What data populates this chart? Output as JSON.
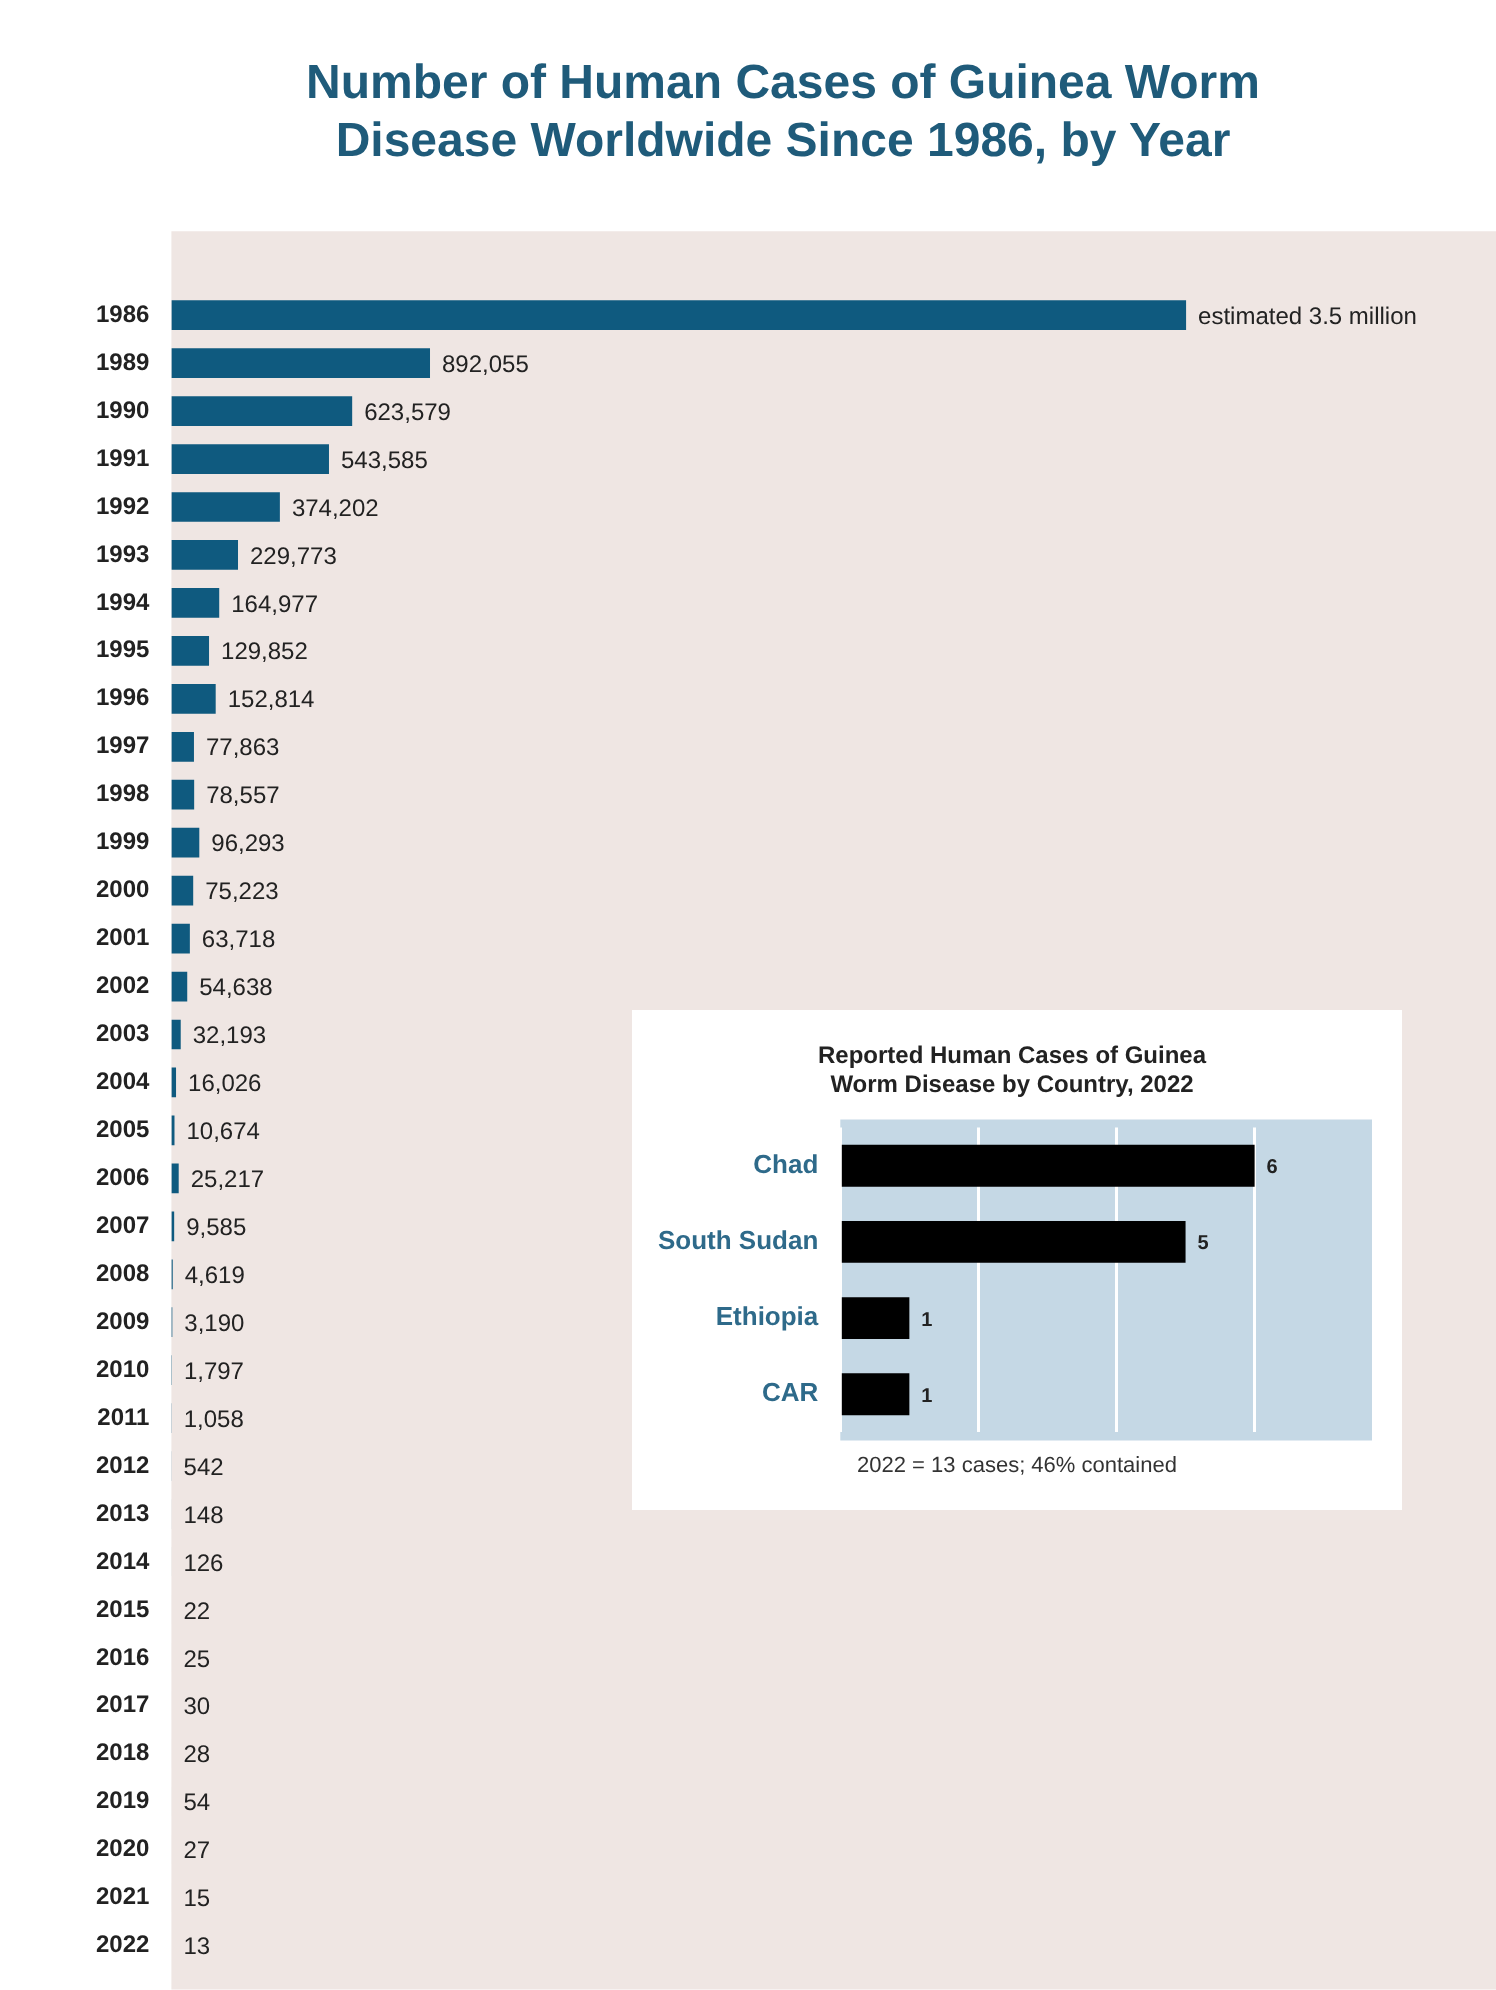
{
  "chart_data": [
    {
      "type": "bar",
      "orientation": "horizontal",
      "title": "Number of Human Cases of Guinea Worm Disease Worldwide Since 1986, by Year",
      "color": "#0f5a7f",
      "tick_labels": "y",
      "grid": false,
      "legend": false,
      "categories": [
        "1986",
        "1989",
        "1990",
        "1991",
        "1992",
        "1993",
        "1994",
        "1995",
        "1996",
        "1997",
        "1998",
        "1999",
        "2000",
        "2001",
        "2002",
        "2003",
        "2004",
        "2005",
        "2006",
        "2007",
        "2008",
        "2009",
        "2010",
        "2011",
        "2012",
        "2013",
        "2014",
        "2015",
        "2016",
        "2017",
        "2018",
        "2019",
        "2020",
        "2021",
        "2022"
      ],
      "values": [
        3500000,
        892055,
        623579,
        543585,
        374202,
        229773,
        164977,
        129852,
        152814,
        77863,
        78557,
        96293,
        75223,
        63718,
        54638,
        32193,
        16026,
        10674,
        25217,
        9585,
        4619,
        3190,
        1797,
        1058,
        542,
        148,
        126,
        22,
        25,
        30,
        28,
        54,
        27,
        15,
        13
      ],
      "value_labels": [
        "estimated 3.5 million",
        "892,055",
        "623,579",
        "543,585",
        "374,202",
        "229,773",
        "164,977",
        "129,852",
        "152,814",
        "77,863",
        "78,557",
        "96,293",
        "75,223",
        "63,718",
        "54,638",
        "32,193",
        "16,026",
        "10,674",
        "25,217",
        "9,585",
        "4,619",
        "3,190",
        "1,797",
        "1,058",
        "542",
        "148",
        "126",
        "22",
        "25",
        "30",
        "28",
        "54",
        "27",
        "15",
        "13"
      ]
    },
    {
      "type": "bar",
      "orientation": "horizontal",
      "title": "Reported Human Cases of Guinea Worm Disease by Country, 2022",
      "color": "#000000",
      "tick_labels": "y",
      "grid": "x",
      "legend": false,
      "data_labels": true,
      "categories": [
        "Chad",
        "South Sudan",
        "Ethiopia",
        "CAR"
      ],
      "values": [
        6,
        5,
        1,
        1
      ],
      "xlim": [
        0,
        7.7
      ],
      "xticks": [
        {
          "value": 0,
          "label": null
        },
        {
          "value": 2,
          "label": null
        },
        {
          "value": 4,
          "label": null
        },
        {
          "value": 6,
          "label": null
        }
      ],
      "annotations": [
        "2022 = 13 cases; 46% contained"
      ]
    }
  ]
}
